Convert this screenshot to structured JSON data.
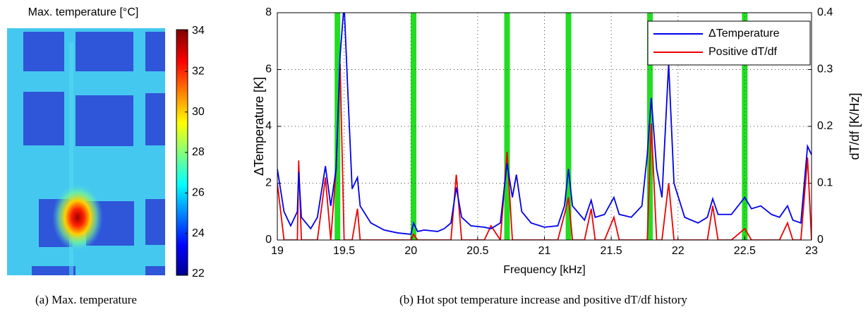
{
  "chart_data": [
    {
      "type": "image",
      "title": "Max. temperature [°C]",
      "clim": [
        22,
        34
      ],
      "cticks": [
        22,
        24,
        26,
        28,
        30,
        32,
        34
      ],
      "caption": "(a) Max. temperature"
    },
    {
      "type": "line",
      "xlabel": "Frequency [kHz]",
      "ylabel": "ΔTemperature [K]",
      "y2label": "dT/df [K/Hz]",
      "caption": "(b) Hot spot temperature increase and positive dT/df history",
      "xlim": [
        19,
        23
      ],
      "xticks": [
        19,
        19.5,
        20,
        20.5,
        21,
        21.5,
        22,
        22.5,
        23
      ],
      "ylim": [
        0,
        8
      ],
      "yticks": [
        0,
        2,
        4,
        6,
        8
      ],
      "y2lim": [
        0,
        0.4
      ],
      "y2ticks": [
        0,
        0.1,
        0.2,
        0.3,
        0.4
      ],
      "grid": true,
      "legend": "northeast",
      "highlights": [
        19.45,
        20.02,
        20.72,
        21.18,
        21.79,
        22.5
      ],
      "highlight_color": "#22dd22",
      "x": [
        19,
        19.05,
        19.1,
        19.15,
        19.16,
        19.18,
        19.25,
        19.3,
        19.36,
        19.4,
        19.44,
        19.47,
        19.5,
        19.53,
        19.56,
        19.6,
        19.62,
        19.7,
        19.8,
        19.9,
        20,
        20.02,
        20.05,
        20.1,
        20.2,
        20.25,
        20.3,
        20.34,
        20.38,
        20.45,
        20.55,
        20.6,
        20.67,
        20.72,
        20.76,
        20.79,
        20.83,
        20.9,
        21,
        21.1,
        21.15,
        21.18,
        21.21,
        21.3,
        21.35,
        21.38,
        21.45,
        21.52,
        21.56,
        21.65,
        21.73,
        21.77,
        21.8,
        21.84,
        21.88,
        21.93,
        21.97,
        22.05,
        22.15,
        22.22,
        22.26,
        22.3,
        22.4,
        22.5,
        22.55,
        22.62,
        22.7,
        22.76,
        22.82,
        22.86,
        22.92,
        22.97,
        23
      ],
      "series": [
        {
          "name": "ΔTemperature",
          "color": "#0000ee",
          "values": [
            2.5,
            1.0,
            0.5,
            1.0,
            2.4,
            0.8,
            0.4,
            0.8,
            2.6,
            1.2,
            2.5,
            6.5,
            8.3,
            5,
            1.8,
            2.2,
            1.2,
            0.6,
            0.35,
            0.25,
            0.2,
            0.6,
            0.3,
            0.35,
            0.3,
            0.4,
            0.6,
            1.85,
            0.8,
            0.5,
            0.45,
            0.4,
            0.6,
            2.7,
            1.5,
            2.3,
            1.0,
            0.6,
            0.45,
            0.5,
            1.2,
            2.5,
            1.2,
            0.7,
            1.4,
            0.8,
            0.9,
            1.5,
            0.9,
            0.8,
            1.2,
            3.0,
            5.0,
            2.5,
            1.5,
            6.2,
            2.0,
            0.8,
            0.6,
            0.8,
            1.45,
            0.9,
            0.9,
            1.5,
            1.1,
            1.2,
            0.9,
            0.8,
            1.2,
            0.7,
            0.6,
            3.3,
            3.0
          ]
        },
        {
          "name": "Positive dT/df",
          "color": "#ee0000",
          "axis": "y2",
          "values": [
            0.1,
            0,
            0,
            0,
            0.14,
            0,
            0,
            0,
            0.11,
            0,
            0.125,
            0.31,
            0,
            0,
            0,
            0.055,
            0,
            0,
            0,
            0,
            0,
            0.01,
            0,
            0,
            0,
            0,
            0,
            0.115,
            0,
            0,
            0,
            0.025,
            0,
            0.155,
            0,
            0,
            0,
            0,
            0,
            0,
            0.045,
            0.075,
            0,
            0,
            0.055,
            0,
            0,
            0.04,
            0,
            0,
            0,
            0,
            0.205,
            0,
            0,
            0.1,
            0,
            0,
            0,
            0,
            0.06,
            0,
            0,
            0.02,
            0,
            0,
            0,
            0,
            0.03,
            0,
            0,
            0.145,
            0
          ]
        }
      ]
    }
  ]
}
